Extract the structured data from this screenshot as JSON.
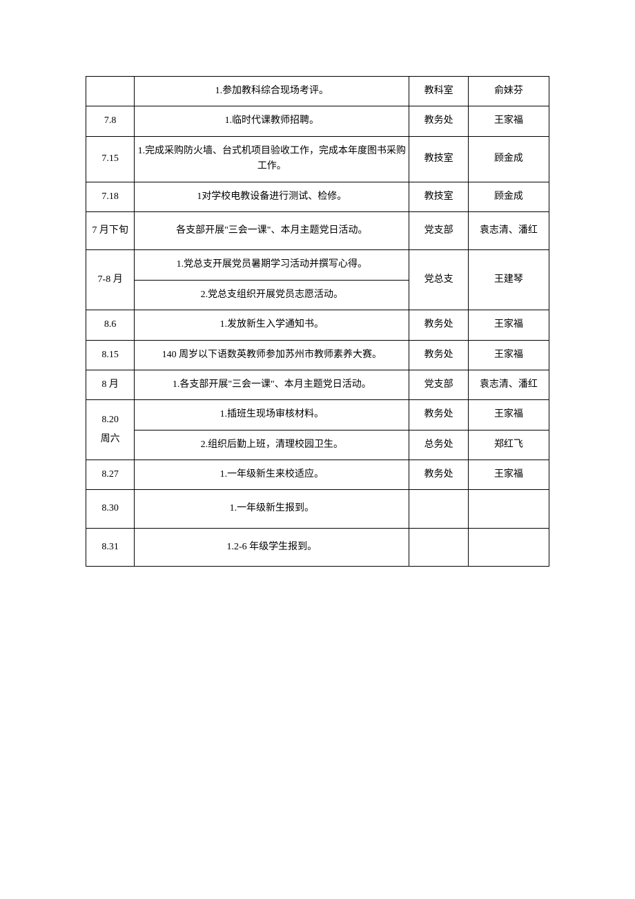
{
  "table": {
    "columns": {
      "date_width": 60,
      "task_width": 340,
      "dept_width": 73,
      "person_width": 100
    },
    "border_color": "#000000",
    "font_size": 14,
    "text_color": "#000000",
    "background_color": "#ffffff",
    "rows": [
      {
        "date": "",
        "task": "1.参加教科综合现场考评。",
        "dept": "教科室",
        "person": "俞妹芬"
      },
      {
        "date": "7.8",
        "task": "1.临时代课教师招聘。",
        "dept": "教务处",
        "person": "王家福"
      },
      {
        "date": "7.15",
        "task": "1.完成采购防火墙、台式机项目验收工作，完成本年度图书采购工作。",
        "dept": "教技室",
        "person": "顾金成"
      },
      {
        "date": "7.18",
        "task": "1对学校电教设备进行测试、检修。",
        "dept": "教技室",
        "person": "顾金成"
      },
      {
        "date": "7 月下旬",
        "task": "各支部开展\"三会一课\"、本月主题党日活动。",
        "dept": "党支部",
        "person": "袁志清、潘红"
      },
      {
        "date": "7-8 月",
        "task": "1.党总支开展党员暑期学习活动并撰写心得。",
        "task2": "2.党总支组织开展党员志愿活动。",
        "dept": "党总支",
        "person": "王建琴"
      },
      {
        "date": "8.6",
        "task": "1.发放新生入学通知书。",
        "dept": "教务处",
        "person": "王家福"
      },
      {
        "date": "8.15",
        "task": "140 周岁以下语数英教师参加苏州市教师素养大赛。",
        "dept": "教务处",
        "person": "王家福"
      },
      {
        "date": "8 月",
        "task": "1.各支部开展\"三会一课\"、本月主题党日活动。",
        "dept": "党支部",
        "person": "袁志清、潘红"
      },
      {
        "date_line1": "8.20",
        "date_line2": "周六",
        "task": "1.插班生现场审核材料。",
        "task2": "2.组织后勤上班，清理校园卫生。",
        "dept": "教务处",
        "dept2": "总务处",
        "person": "王家福",
        "person2": "郑红飞"
      },
      {
        "date": "8.27",
        "task": "1.一年级新生来校适应。",
        "dept": "教务处",
        "person": "王家福"
      },
      {
        "date": "8.30",
        "task": "1.一年级新生报到。",
        "dept": "",
        "person": ""
      },
      {
        "date": "8.31",
        "task": "1.2-6 年级学生报到。",
        "dept": "",
        "person": ""
      }
    ]
  }
}
